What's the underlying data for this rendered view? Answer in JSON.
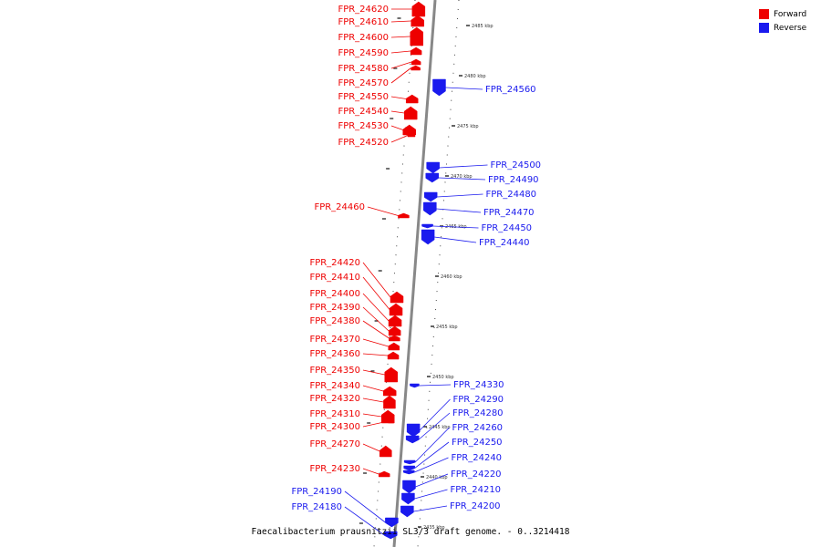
{
  "title": "Faecalibacterium prausnitzii SL3/3 draft genome. - 0..3214418",
  "colors": {
    "forward": "#ee0000",
    "reverse": "#1a1aee",
    "axis": "#888888",
    "ticks": "#555555"
  },
  "legend": [
    {
      "label": "Forward",
      "color": "#ee0000"
    },
    {
      "label": "Reverse",
      "color": "#1a1aee"
    }
  ],
  "scale_labels": [
    "2485 kbp",
    "2480 kbp",
    "2475 kbp",
    "2470 kbp",
    "2465 kbp",
    "2460 kbp",
    "2455 kbp",
    "2450 kbp",
    "2445 kbp",
    "2440 kbp",
    "2435 kbp"
  ],
  "genes_forward": [
    "FPR_24620",
    "FPR_24610",
    "FPR_24600",
    "FPR_24590",
    "FPR_24580",
    "FPR_24570",
    "FPR_24550",
    "FPR_24540",
    "FPR_24530",
    "FPR_24520",
    "FPR_24460",
    "FPR_24420",
    "FPR_24410",
    "FPR_24400",
    "FPR_24390",
    "FPR_24380",
    "FPR_24370",
    "FPR_24360",
    "FPR_24350",
    "FPR_24340",
    "FPR_24320",
    "FPR_24310",
    "FPR_24300",
    "FPR_24270",
    "FPR_24230"
  ],
  "genes_reverse": [
    "FPR_24560",
    "FPR_24500",
    "FPR_24490",
    "FPR_24480",
    "FPR_24470",
    "FPR_24450",
    "FPR_24440",
    "FPR_24330",
    "FPR_24290",
    "FPR_24280",
    "FPR_24260",
    "FPR_24250",
    "FPR_24240",
    "FPR_24220",
    "FPR_24210",
    "FPR_24200",
    "FPR_24190",
    "FPR_24180"
  ]
}
